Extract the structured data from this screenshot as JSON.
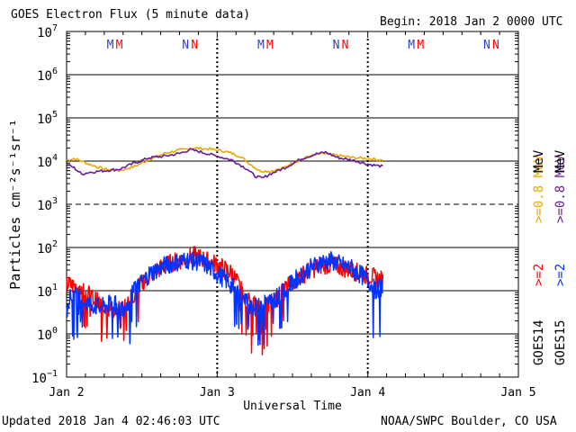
{
  "header": {
    "title": "GOES Electron Flux (5 minute data)",
    "begin": "Begin: 2018 Jan 2 0000 UTC"
  },
  "footer": {
    "updated": "Updated 2018 Jan  4 02:46:03 UTC",
    "credit": "NOAA/SWPC Boulder, CO USA"
  },
  "colors": {
    "goes14_high": "#e8a800",
    "goes15_high": "#6a1b9a",
    "goes14_low": "#ff0000",
    "goes15_low": "#0033ff",
    "marker_m": "#2d3fbf",
    "marker_n_first": "#2d3fbf"
  },
  "chart_data": {
    "type": "line",
    "xlabel": "Universal Time",
    "ylabel": "Particles cm⁻²s⁻¹sr⁻¹",
    "x_ticks": [
      "Jan 2",
      "Jan 3",
      "Jan 4",
      "Jan 5"
    ],
    "x_range_days": [
      0,
      3
    ],
    "y_scale": "log",
    "ylim": [
      0.1,
      10000000
    ],
    "y_ticks": [
      {
        "base": "10",
        "exp": "7"
      },
      {
        "base": "10",
        "exp": "6"
      },
      {
        "base": "10",
        "exp": "5"
      },
      {
        "base": "10",
        "exp": "4"
      },
      {
        "base": "10",
        "exp": "3"
      },
      {
        "base": "10",
        "exp": "2"
      },
      {
        "base": "10",
        "exp": "1"
      },
      {
        "base": "10",
        "exp": "0"
      },
      {
        "base": "10",
        "exp": "−1"
      }
    ],
    "threshold_dashed": 1000,
    "local_time_markers": [
      {
        "label": "M",
        "day": 0.29
      },
      {
        "label": "M",
        "day": 0.35
      },
      {
        "label": "N",
        "day": 0.79
      },
      {
        "label": "N",
        "day": 0.85
      },
      {
        "label": "M",
        "day": 1.29
      },
      {
        "label": "M",
        "day": 1.35
      },
      {
        "label": "N",
        "day": 1.79
      },
      {
        "label": "N",
        "day": 1.85
      },
      {
        "label": "M",
        "day": 2.29
      },
      {
        "label": "M",
        "day": 2.35
      },
      {
        "label": "N",
        "day": 2.79
      },
      {
        "label": "N",
        "day": 2.85
      }
    ],
    "legend": {
      "placement": "right",
      "groups": [
        {
          "satellite": "GOES14",
          "entries": [
            ">=2",
            ">=0.8 MeV"
          ]
        },
        {
          "satellite": "GOES15",
          "entries": [
            ">=2",
            ">=0.8 MeV"
          ]
        }
      ]
    },
    "series": [
      {
        "key": "goes14_high",
        "points": [
          [
            0,
            10500
          ],
          [
            0.05,
            11500
          ],
          [
            0.1,
            10000
          ],
          [
            0.15,
            8500
          ],
          [
            0.25,
            6500
          ],
          [
            0.35,
            6000
          ],
          [
            0.45,
            7500
          ],
          [
            0.55,
            11000
          ],
          [
            0.65,
            15000
          ],
          [
            0.75,
            18000
          ],
          [
            0.85,
            20000
          ],
          [
            0.95,
            19000
          ],
          [
            1.05,
            17000
          ],
          [
            1.15,
            13000
          ],
          [
            1.22,
            8500
          ],
          [
            1.28,
            6000
          ],
          [
            1.35,
            5800
          ],
          [
            1.42,
            6500
          ],
          [
            1.5,
            9000
          ],
          [
            1.6,
            12500
          ],
          [
            1.7,
            15000
          ],
          [
            1.8,
            13500
          ],
          [
            1.9,
            12000
          ],
          [
            2.0,
            11500
          ],
          [
            2.1,
            10500
          ]
        ]
      },
      {
        "key": "goes15_high",
        "points": [
          [
            0,
            8500
          ],
          [
            0.05,
            7000
          ],
          [
            0.1,
            5000
          ],
          [
            0.15,
            5500
          ],
          [
            0.25,
            6000
          ],
          [
            0.35,
            6500
          ],
          [
            0.45,
            9000
          ],
          [
            0.55,
            12000
          ],
          [
            0.65,
            13000
          ],
          [
            0.75,
            15000
          ],
          [
            0.82,
            18500
          ],
          [
            0.9,
            16000
          ],
          [
            1.0,
            13000
          ],
          [
            1.1,
            10500
          ],
          [
            1.2,
            6500
          ],
          [
            1.25,
            4500
          ],
          [
            1.3,
            4000
          ],
          [
            1.35,
            5000
          ],
          [
            1.45,
            7000
          ],
          [
            1.55,
            11000
          ],
          [
            1.65,
            14500
          ],
          [
            1.72,
            16000
          ],
          [
            1.8,
            12000
          ],
          [
            1.9,
            10500
          ],
          [
            2.0,
            8500
          ],
          [
            2.1,
            7500
          ]
        ]
      },
      {
        "key": "goes14_low",
        "points": [
          [
            0,
            14
          ],
          [
            0.08,
            12
          ],
          [
            0.15,
            8
          ],
          [
            0.22,
            5
          ],
          [
            0.28,
            4
          ],
          [
            0.33,
            3
          ],
          [
            0.4,
            5
          ],
          [
            0.5,
            15
          ],
          [
            0.6,
            30
          ],
          [
            0.7,
            45
          ],
          [
            0.8,
            55
          ],
          [
            0.85,
            65
          ],
          [
            0.9,
            55
          ],
          [
            1.0,
            40
          ],
          [
            1.1,
            25
          ],
          [
            1.15,
            12
          ],
          [
            1.2,
            6
          ],
          [
            1.25,
            5
          ],
          [
            1.3,
            4
          ],
          [
            1.35,
            5
          ],
          [
            1.42,
            8
          ],
          [
            1.5,
            16
          ],
          [
            1.6,
            28
          ],
          [
            1.7,
            40
          ],
          [
            1.78,
            38
          ],
          [
            1.85,
            33
          ],
          [
            1.95,
            25
          ],
          [
            2.05,
            20
          ],
          [
            2.1,
            17
          ]
        ]
      },
      {
        "key": "goes15_low",
        "points": [
          [
            0,
            6
          ],
          [
            0.05,
            8
          ],
          [
            0.1,
            6
          ],
          [
            0.15,
            5
          ],
          [
            0.22,
            4
          ],
          [
            0.3,
            5
          ],
          [
            0.38,
            4
          ],
          [
            0.45,
            10
          ],
          [
            0.55,
            25
          ],
          [
            0.65,
            38
          ],
          [
            0.72,
            45
          ],
          [
            0.8,
            52
          ],
          [
            0.9,
            45
          ],
          [
            1.0,
            25
          ],
          [
            1.08,
            15
          ],
          [
            1.12,
            10
          ],
          [
            1.18,
            6
          ],
          [
            1.25,
            4
          ],
          [
            1.32,
            5
          ],
          [
            1.42,
            8
          ],
          [
            1.52,
            18
          ],
          [
            1.6,
            30
          ],
          [
            1.68,
            45
          ],
          [
            1.75,
            50
          ],
          [
            1.82,
            40
          ],
          [
            1.9,
            32
          ],
          [
            2.0,
            18
          ],
          [
            2.05,
            10
          ],
          [
            2.1,
            13
          ]
        ]
      }
    ]
  }
}
